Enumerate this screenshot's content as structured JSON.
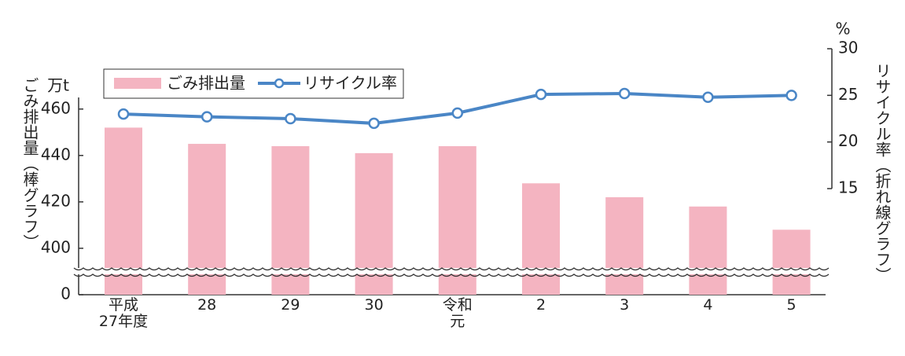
{
  "chart_data": {
    "type": "bar_line",
    "categories": [
      "平成\n27年度",
      "28",
      "29",
      "30",
      "令和\n元",
      "2",
      "3",
      "4",
      "5"
    ],
    "series": [
      {
        "name": "ごみ排出量",
        "type": "bar",
        "color": "#f4b4c1",
        "values": [
          452,
          445,
          444,
          441,
          444,
          428,
          422,
          418,
          408
        ]
      },
      {
        "name": "リサイクル率",
        "type": "line",
        "axis": "y2",
        "color": "#4a86c6",
        "values": [
          23.0,
          22.7,
          22.5,
          22.0,
          23.1,
          25.1,
          25.2,
          24.8,
          25.0
        ]
      }
    ],
    "ylabel": "ごみ排出量（棒グラフ）",
    "yunit": "万t",
    "y2label": "リサイクル率（折れ線グラフ）",
    "y2unit": "%",
    "ylim": [
      0,
      465
    ],
    "ybreak": [
      0,
      380
    ],
    "yticks": [
      0,
      400,
      420,
      440,
      460
    ],
    "y2lim": [
      15,
      30
    ],
    "y2ticks": [
      15,
      20,
      25,
      30
    ]
  }
}
